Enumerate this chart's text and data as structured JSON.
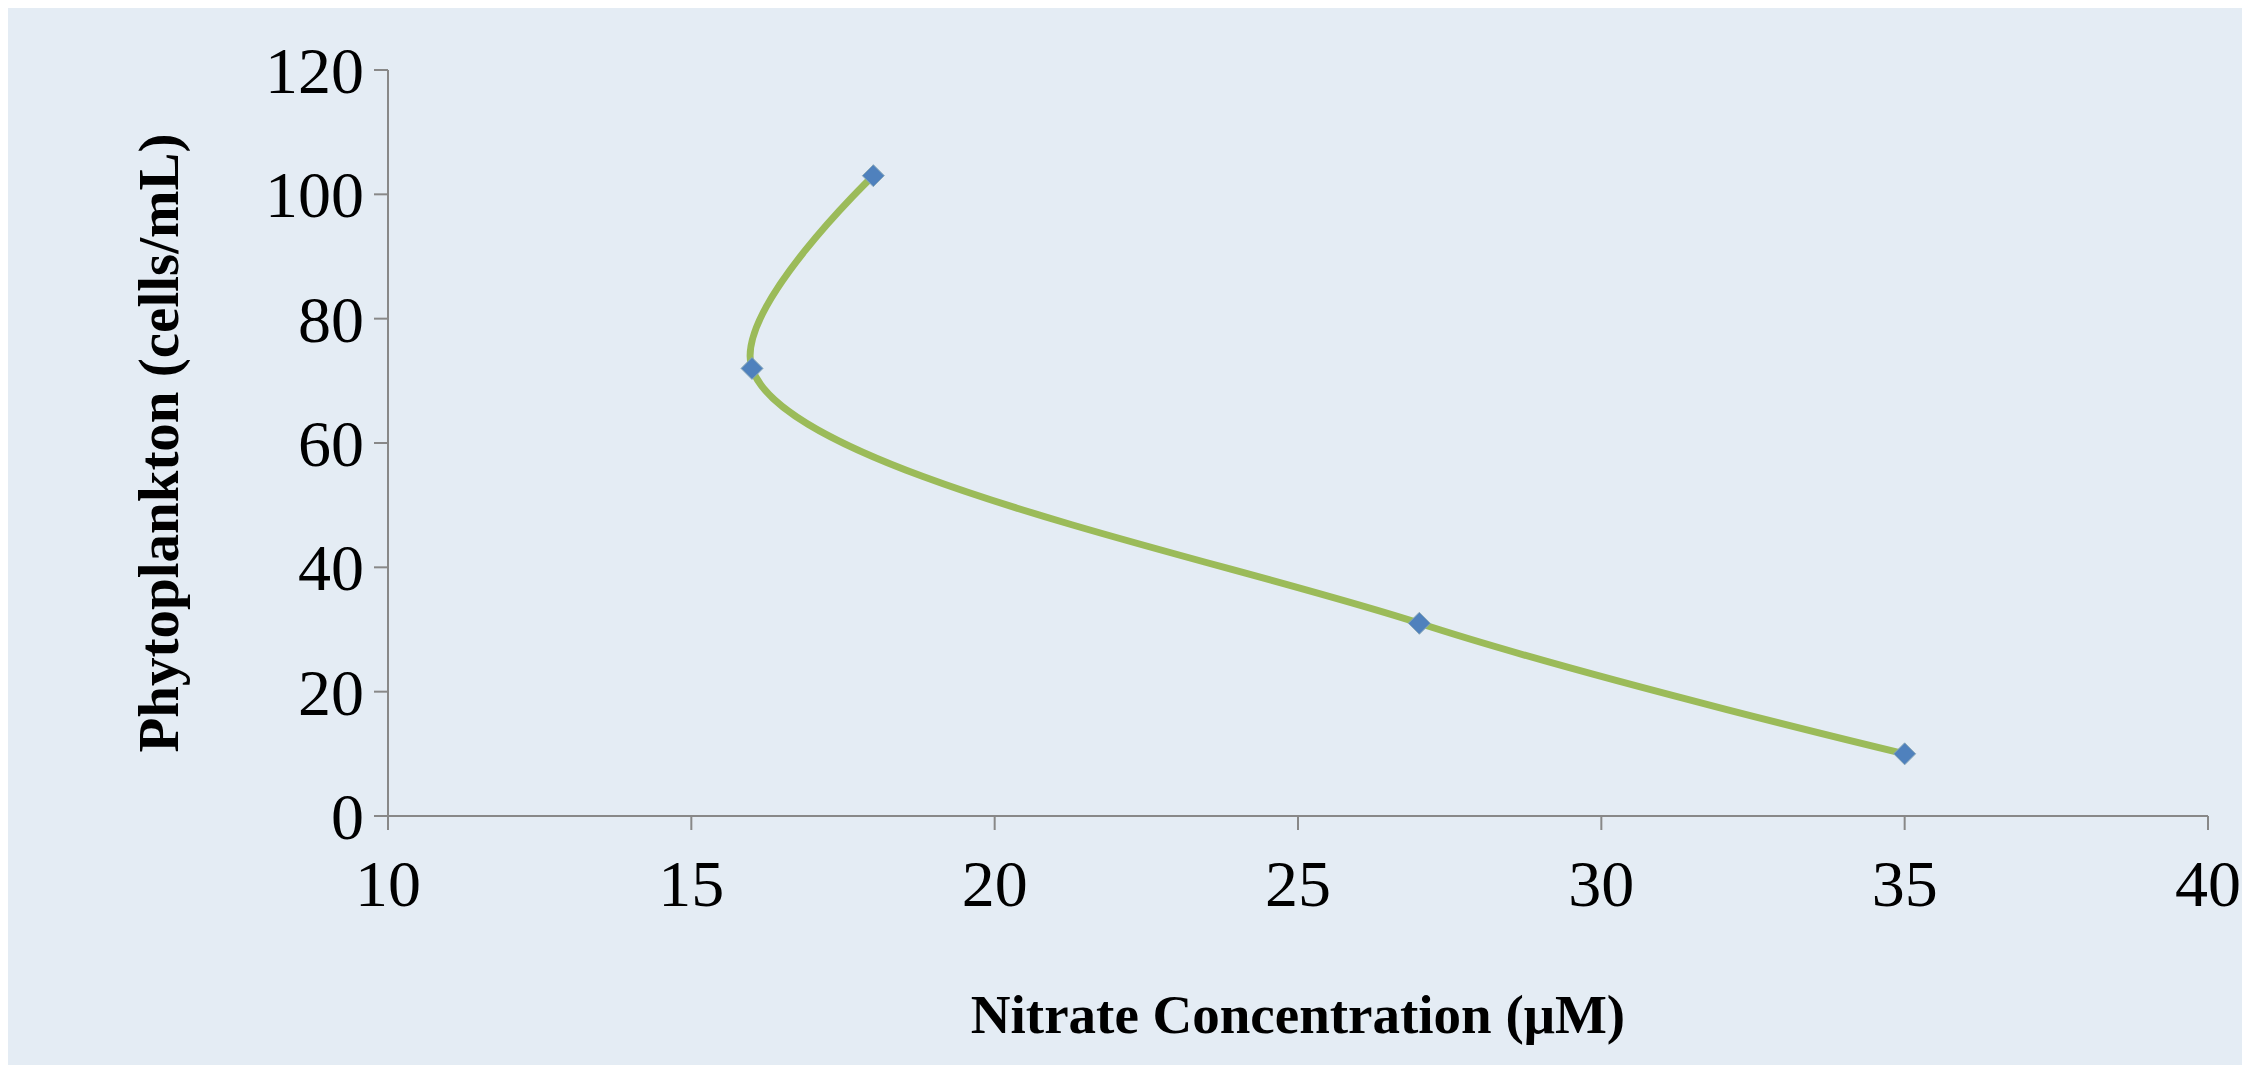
{
  "chart_data": {
    "type": "line",
    "xlabel": "Nitrate Concentration  (μM)",
    "ylabel": "Phytoplankton  (cells/mL)",
    "x": [
      18,
      16,
      27,
      35
    ],
    "series": [
      {
        "color": "#9bbb59",
        "colors": [
          "#4f81bd",
          "#4f81bd",
          "#4f81bd",
          "#4f81bd"
        ],
        "values": [
          103,
          72,
          31,
          10
        ]
      }
    ],
    "xlim": [
      10,
      40
    ],
    "xticks": [
      10,
      15,
      20,
      25,
      30,
      35,
      40
    ],
    "ylim": [
      0,
      120
    ],
    "yticks": [
      0,
      20,
      40,
      60,
      80,
      100,
      120
    ],
    "grid": false,
    "marker": "diamond",
    "line_style": "solid"
  }
}
